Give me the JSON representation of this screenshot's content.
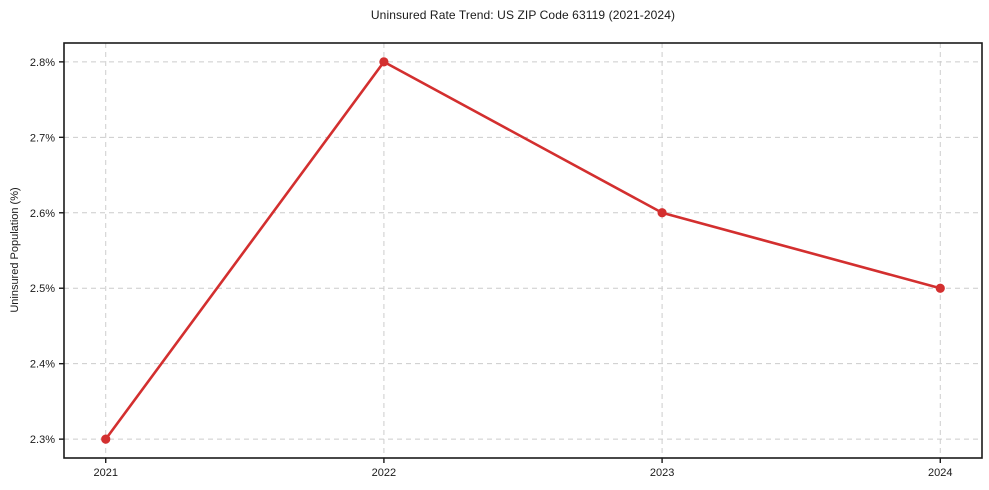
{
  "figure": {
    "background_color": "#ffffff"
  },
  "chart_data": {
    "type": "line",
    "title": "Uninsured Rate Trend: US ZIP Code 63119 (2021-2024)",
    "xlabel": "",
    "ylabel": "Uninsured Population (%)",
    "x": [
      2021,
      2022,
      2023,
      2024
    ],
    "categories": [
      "2021",
      "2022",
      "2023",
      "2024"
    ],
    "series": [
      {
        "name": "Uninsured Population (%)",
        "values": [
          2.3,
          2.8,
          2.6,
          2.5
        ]
      }
    ],
    "yticks": [
      2.3,
      2.4,
      2.5,
      2.6,
      2.7,
      2.8
    ],
    "ytick_labels": [
      "2.3%",
      "2.4%",
      "2.5%",
      "2.6%",
      "2.7%",
      "2.8%"
    ],
    "xtick_labels": [
      "2021",
      "2022",
      "2023",
      "2024"
    ],
    "ylim": [
      2.275,
      2.825
    ],
    "xlim": [
      2020.85,
      2024.15
    ],
    "grid": true,
    "grid_style": "dashed",
    "legend": false,
    "colors": {
      "line": "#d32f2f",
      "marker": "#d32f2f",
      "grid": "#cccccc",
      "spine": "#1a1a1a",
      "text": "#1a1a1a",
      "background": "#ffffff"
    }
  }
}
